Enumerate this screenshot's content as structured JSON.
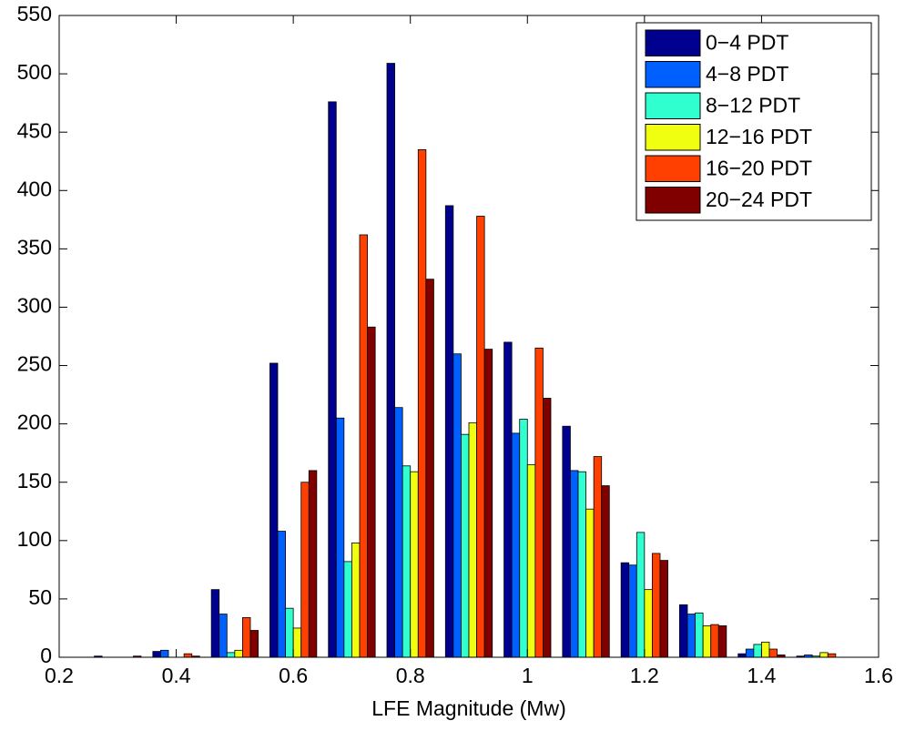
{
  "chart_data": {
    "type": "bar",
    "x_label": "LFE Magnitude (Mw)",
    "x": [
      0.3,
      0.4,
      0.5,
      0.6,
      0.7,
      0.8,
      0.9,
      1.0,
      1.1,
      1.2,
      1.3,
      1.4,
      1.5
    ],
    "series": [
      {
        "name": "0−4 PDT",
        "color": "#00008f",
        "values": [
          1,
          5,
          58,
          252,
          476,
          509,
          387,
          270,
          198,
          81,
          45,
          3,
          1
        ]
      },
      {
        "name": "4−8 PDT",
        "color": "#0060ff",
        "values": [
          0,
          6,
          37,
          108,
          205,
          214,
          260,
          192,
          160,
          79,
          37,
          7,
          2
        ]
      },
      {
        "name": "8−12 PDT",
        "color": "#30ffd0",
        "values": [
          0,
          0,
          4,
          42,
          82,
          164,
          191,
          204,
          159,
          107,
          38,
          11,
          1
        ]
      },
      {
        "name": "12−16 PDT",
        "color": "#f0ff10",
        "values": [
          0,
          0,
          6,
          25,
          98,
          159,
          201,
          165,
          127,
          58,
          27,
          13,
          4
        ]
      },
      {
        "name": "16−20 PDT",
        "color": "#ff4000",
        "values": [
          0,
          3,
          34,
          150,
          362,
          435,
          378,
          265,
          172,
          89,
          28,
          7,
          3
        ]
      },
      {
        "name": "20−24 PDT",
        "color": "#800000",
        "values": [
          1,
          1,
          23,
          160,
          283,
          324,
          264,
          222,
          147,
          83,
          27,
          2,
          0
        ]
      }
    ],
    "xlim": [
      0.2,
      1.6
    ],
    "xticks": [
      0.2,
      0.4,
      0.6,
      0.8,
      1,
      1.2,
      1.4,
      1.6
    ],
    "ylim": [
      0,
      550
    ],
    "yticks": [
      0,
      50,
      100,
      150,
      200,
      250,
      300,
      350,
      400,
      450,
      500,
      550
    ],
    "legend": "top-right"
  }
}
